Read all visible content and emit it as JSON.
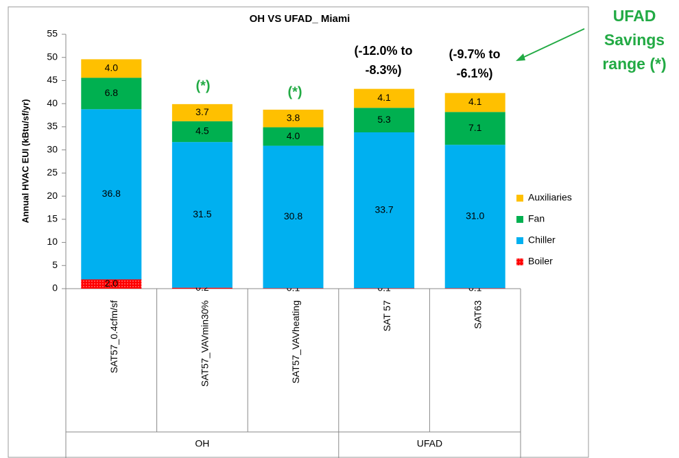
{
  "chart_data": {
    "type": "stacked_bar",
    "title": "OH VS UFAD_ Miami",
    "y_label": "Annual HVAC EUI (kBtu/sf/yr)",
    "categories": [
      "SAT57_0.4cfm/sf",
      "SAT57_VAVmin30%",
      "SAT57_VAVheating",
      "SAT 57",
      "SAT63"
    ],
    "groups": [
      "OH",
      "UFAD"
    ],
    "series": [
      {
        "name": "Boiler",
        "color": "#ff0000",
        "values": [
          2.0,
          0.2,
          0.1,
          0.1,
          0.1
        ],
        "value_labels": [
          "2.0",
          "0.2",
          "0.1",
          "0.1",
          "0.1"
        ]
      },
      {
        "name": "Chiller",
        "color": "#00b0f0",
        "values": [
          36.8,
          31.5,
          30.8,
          33.7,
          31.0
        ],
        "value_labels": [
          "36.8",
          "31.5",
          "30.8",
          "33.7",
          "31.0"
        ]
      },
      {
        "name": "Fan",
        "color": "#00b050",
        "values": [
          6.8,
          4.5,
          4.0,
          5.3,
          7.1
        ],
        "value_labels": [
          "6.8",
          "4.5",
          "4.0",
          "5.3",
          "7.1"
        ]
      },
      {
        "name": "Auxiliaries",
        "color": "#ffc000",
        "values": [
          4.0,
          3.7,
          3.8,
          4.1,
          4.1
        ],
        "value_labels": [
          "4.0",
          "3.7",
          "3.8",
          "4.1",
          "4.1"
        ]
      }
    ],
    "ylim": [
      0,
      55
    ],
    "yticks": [
      0,
      5,
      10,
      15,
      20,
      25,
      30,
      35,
      40,
      45,
      50,
      55
    ],
    "grid": false,
    "legend": "right",
    "annotations": [
      [
        "(*)"
      ],
      [
        "(*)"
      ],
      [
        "(-12.0% to",
        "-8.3%)"
      ],
      [
        "(-9.7% to",
        "-6.1%)"
      ]
    ],
    "callout": [
      "UFAD",
      "Savings",
      "range (*)"
    ]
  }
}
